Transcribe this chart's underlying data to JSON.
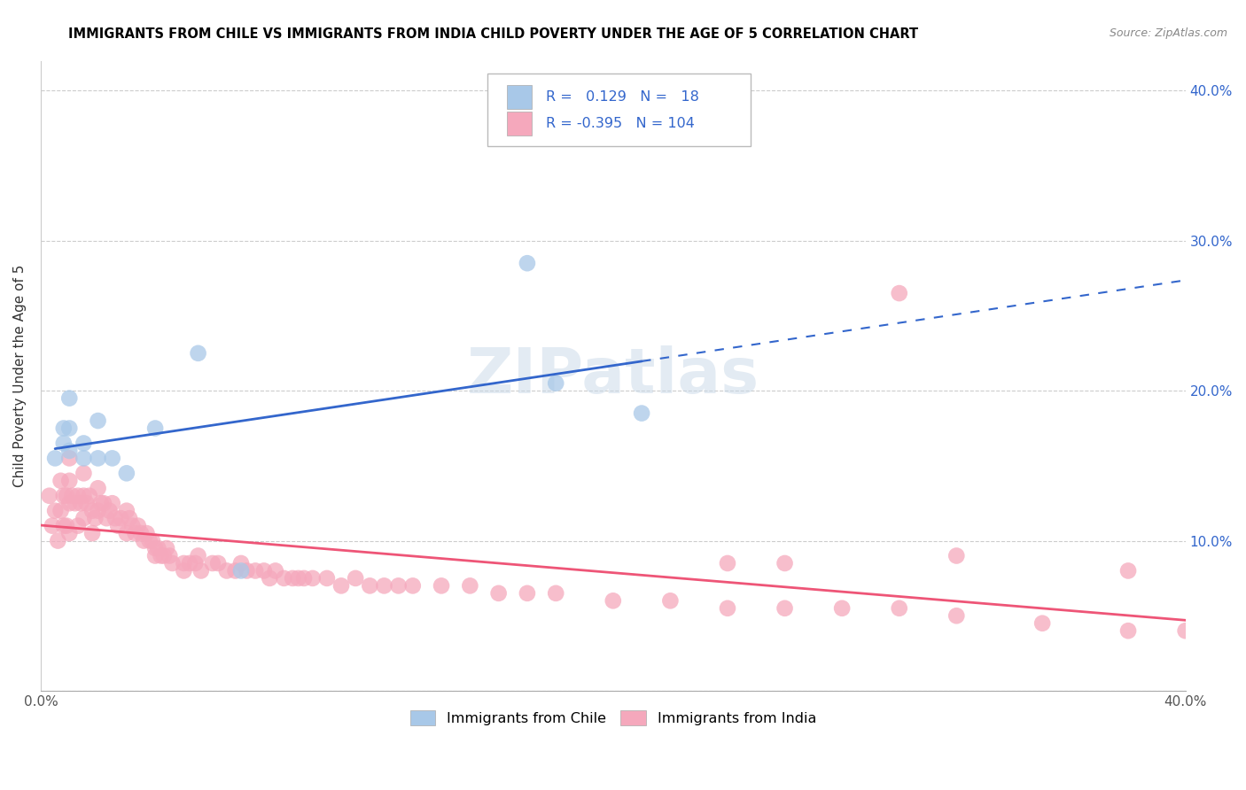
{
  "title": "IMMIGRANTS FROM CHILE VS IMMIGRANTS FROM INDIA CHILD POVERTY UNDER THE AGE OF 5 CORRELATION CHART",
  "source": "Source: ZipAtlas.com",
  "ylabel": "Child Poverty Under the Age of 5",
  "xlim": [
    0.0,
    0.4
  ],
  "ylim": [
    0.0,
    0.42
  ],
  "yticks": [
    0.0,
    0.1,
    0.2,
    0.3,
    0.4
  ],
  "xticks": [
    0.0,
    0.1,
    0.2,
    0.3,
    0.4
  ],
  "chile_color": "#a8c8e8",
  "india_color": "#f5a8bc",
  "chile_line_color": "#3366cc",
  "india_line_color": "#ee5577",
  "legend_text_color": "#3366cc",
  "chile_R": 0.129,
  "chile_N": 18,
  "india_R": -0.395,
  "india_N": 104,
  "chile_x": [
    0.005,
    0.008,
    0.008,
    0.01,
    0.01,
    0.01,
    0.015,
    0.015,
    0.02,
    0.02,
    0.025,
    0.03,
    0.04,
    0.055,
    0.07,
    0.17,
    0.18,
    0.21
  ],
  "chile_y": [
    0.155,
    0.175,
    0.165,
    0.16,
    0.175,
    0.195,
    0.155,
    0.165,
    0.18,
    0.155,
    0.155,
    0.145,
    0.175,
    0.225,
    0.08,
    0.285,
    0.205,
    0.185
  ],
  "india_x": [
    0.003,
    0.004,
    0.005,
    0.006,
    0.007,
    0.007,
    0.008,
    0.008,
    0.009,
    0.009,
    0.01,
    0.01,
    0.01,
    0.01,
    0.011,
    0.012,
    0.013,
    0.013,
    0.014,
    0.015,
    0.015,
    0.015,
    0.016,
    0.017,
    0.018,
    0.018,
    0.019,
    0.02,
    0.02,
    0.021,
    0.022,
    0.023,
    0.024,
    0.025,
    0.026,
    0.027,
    0.028,
    0.03,
    0.03,
    0.031,
    0.032,
    0.033,
    0.034,
    0.035,
    0.036,
    0.037,
    0.038,
    0.039,
    0.04,
    0.04,
    0.041,
    0.042,
    0.043,
    0.044,
    0.045,
    0.046,
    0.05,
    0.05,
    0.052,
    0.054,
    0.055,
    0.056,
    0.06,
    0.062,
    0.065,
    0.068,
    0.07,
    0.072,
    0.075,
    0.078,
    0.08,
    0.082,
    0.085,
    0.088,
    0.09,
    0.092,
    0.095,
    0.1,
    0.105,
    0.11,
    0.115,
    0.12,
    0.125,
    0.13,
    0.14,
    0.15,
    0.16,
    0.17,
    0.18,
    0.2,
    0.22,
    0.24,
    0.26,
    0.28,
    0.3,
    0.32,
    0.35,
    0.38,
    0.4,
    0.38,
    0.32,
    0.3,
    0.26,
    0.24
  ],
  "india_y": [
    0.13,
    0.11,
    0.12,
    0.1,
    0.14,
    0.12,
    0.13,
    0.11,
    0.13,
    0.11,
    0.155,
    0.14,
    0.125,
    0.105,
    0.13,
    0.125,
    0.13,
    0.11,
    0.125,
    0.145,
    0.13,
    0.115,
    0.125,
    0.13,
    0.12,
    0.105,
    0.115,
    0.135,
    0.12,
    0.125,
    0.125,
    0.115,
    0.12,
    0.125,
    0.115,
    0.11,
    0.115,
    0.12,
    0.105,
    0.115,
    0.11,
    0.105,
    0.11,
    0.105,
    0.1,
    0.105,
    0.1,
    0.1,
    0.095,
    0.09,
    0.095,
    0.09,
    0.09,
    0.095,
    0.09,
    0.085,
    0.085,
    0.08,
    0.085,
    0.085,
    0.09,
    0.08,
    0.085,
    0.085,
    0.08,
    0.08,
    0.085,
    0.08,
    0.08,
    0.08,
    0.075,
    0.08,
    0.075,
    0.075,
    0.075,
    0.075,
    0.075,
    0.075,
    0.07,
    0.075,
    0.07,
    0.07,
    0.07,
    0.07,
    0.07,
    0.07,
    0.065,
    0.065,
    0.065,
    0.06,
    0.06,
    0.055,
    0.055,
    0.055,
    0.055,
    0.05,
    0.045,
    0.04,
    0.04,
    0.08,
    0.09,
    0.265,
    0.085,
    0.085
  ]
}
